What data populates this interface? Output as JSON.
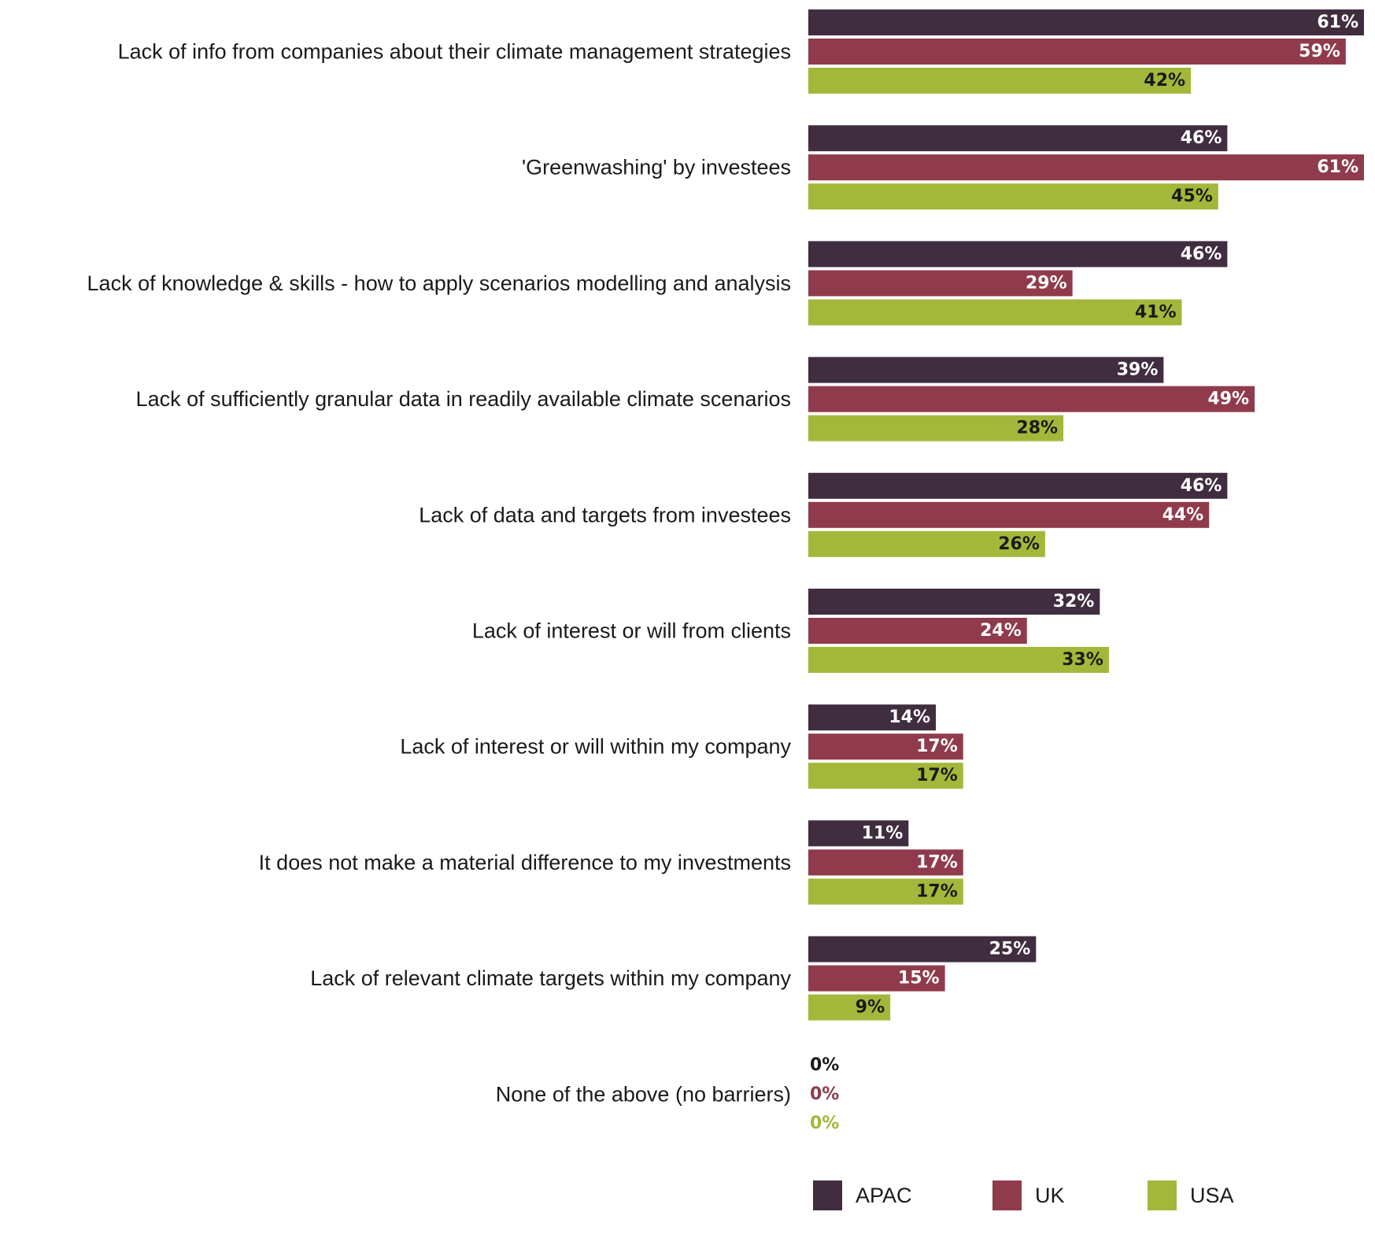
{
  "chart_data": {
    "type": "bar",
    "orientation": "horizontal",
    "categories": [
      "Lack of info from companies about their climate management strategies",
      "'Greenwashing' by investees",
      "Lack of knowledge & skills - how to apply scenarios modelling and analysis",
      "Lack of sufficiently granular data in readily available climate scenarios",
      "Lack of data and targets from investees",
      "Lack of interest or will from clients",
      "Lack of interest or will within my company",
      "It does not make a material difference to my investments",
      "Lack of relevant climate targets within my company",
      "None of the above (no barriers)"
    ],
    "series": [
      {
        "name": "APAC",
        "color": "#402e40",
        "label_color": "#ffffff",
        "outside_label_color": "#1a1a1a",
        "values": [
          61,
          46,
          46,
          39,
          46,
          32,
          14,
          11,
          25,
          0
        ],
        "labels": [
          "61%",
          "46%",
          "46%",
          "39%",
          "46%",
          "32%",
          "14%",
          "11%",
          "25%",
          "0%"
        ]
      },
      {
        "name": "UK",
        "color": "#8f3b4b",
        "label_color": "#ffffff",
        "outside_label_color": "#8f3b4b",
        "values": [
          59,
          61,
          29,
          49,
          44,
          24,
          17,
          17,
          15,
          0
        ],
        "labels": [
          "59%",
          "61%",
          "29%",
          "49%",
          "44%",
          "24%",
          "17%",
          "17%",
          "15%",
          "0%"
        ]
      },
      {
        "name": "USA",
        "color": "#a3b83a",
        "label_color": "#1a1a1a",
        "outside_label_color": "#a3b83a",
        "values": [
          42,
          45,
          41,
          28,
          26,
          33,
          17,
          17,
          9,
          0
        ],
        "labels": [
          "42%",
          "45%",
          "41%",
          "28%",
          "26%",
          "33%",
          "17%",
          "17%",
          "9%",
          "0%"
        ]
      }
    ],
    "xlim": [
      0,
      61
    ],
    "grid": false,
    "legend": {
      "position": "bottom",
      "entries": [
        "APAC",
        "UK",
        "USA"
      ]
    }
  }
}
